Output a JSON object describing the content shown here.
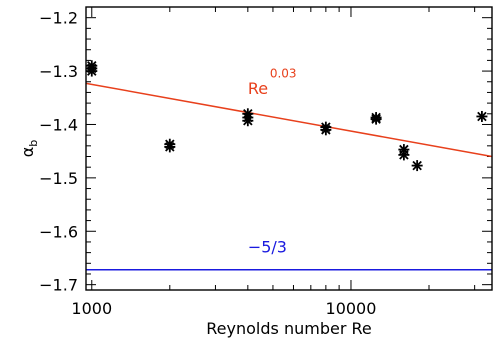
{
  "chart_data": {
    "type": "scatter",
    "xlabel": "Reynolds number Re",
    "ylabel": "α",
    "ylabel_subscript": "b",
    "xscale": "log",
    "xlim": [
      950,
      35000
    ],
    "ylim": [
      -1.71,
      -1.18
    ],
    "x_ticks": [
      {
        "value": 1000,
        "label": "1000"
      },
      {
        "value": 10000,
        "label": "10000"
      }
    ],
    "y_ticks": [
      {
        "value": -1.2,
        "label": "−1.2"
      },
      {
        "value": -1.3,
        "label": "−1.3"
      },
      {
        "value": -1.4,
        "label": "−1.4"
      },
      {
        "value": -1.5,
        "label": "−1.5"
      },
      {
        "value": -1.6,
        "label": "−1.6"
      },
      {
        "value": -1.7,
        "label": "−1.7"
      }
    ],
    "colors": {
      "markers": "#000000",
      "fit_line": "#e8401c",
      "kolmogorov_line": "#1a1adf",
      "axes": "#000000"
    },
    "series": [
      {
        "marker": "asterisk",
        "points": [
          {
            "x": 1000,
            "y": -1.29
          },
          {
            "x": 1000,
            "y": -1.295
          },
          {
            "x": 1000,
            "y": -1.3
          },
          {
            "x": 2000,
            "y": -1.437
          },
          {
            "x": 2000,
            "y": -1.442
          },
          {
            "x": 4000,
            "y": -1.38
          },
          {
            "x": 4000,
            "y": -1.387
          },
          {
            "x": 4000,
            "y": -1.393
          },
          {
            "x": 8000,
            "y": -1.405
          },
          {
            "x": 8000,
            "y": -1.41
          },
          {
            "x": 12500,
            "y": -1.387
          },
          {
            "x": 12500,
            "y": -1.39
          },
          {
            "x": 16000,
            "y": -1.447
          },
          {
            "x": 16000,
            "y": -1.457
          },
          {
            "x": 18000,
            "y": -1.477
          },
          {
            "x": 32000,
            "y": -1.385
          }
        ]
      }
    ],
    "lines": [
      {
        "kind": "fit",
        "x": [
          950,
          35000
        ],
        "y": [
          -1.323,
          -1.46
        ],
        "label_base": "Re",
        "label_exponent": "0.03"
      },
      {
        "kind": "reference",
        "y": -1.672,
        "label": "−5/3"
      }
    ],
    "annotations": [
      {
        "ref": "fit",
        "x": 4000,
        "y": -1.343,
        "exp_y": -1.312
      },
      {
        "ref": "kolmogorov",
        "x": 4000,
        "y": -1.64
      }
    ]
  }
}
